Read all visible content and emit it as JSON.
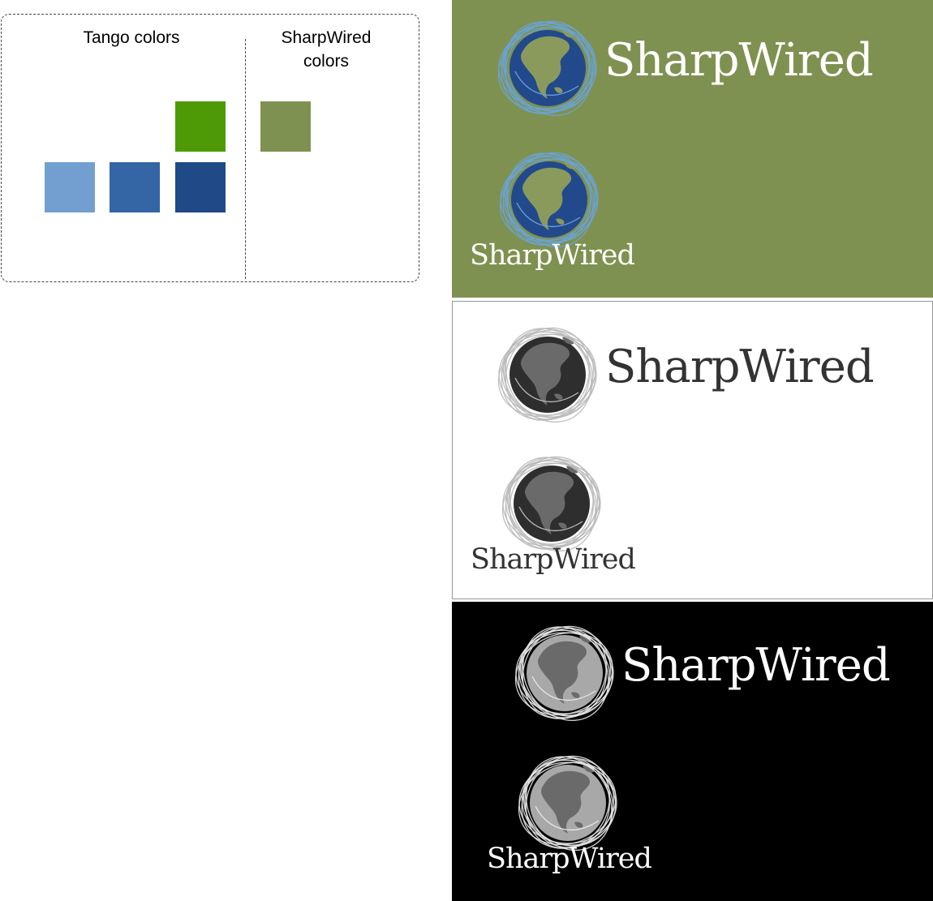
{
  "legend": {
    "tango_heading": "Tango colors",
    "sharpwired_heading_line1": "SharpWired",
    "sharpwired_heading_line2": "colors",
    "tango_swatches": [
      "#4e9a06",
      "#729fcf",
      "#3465a4",
      "#204a87"
    ],
    "sharpwired_swatch": "#7f9150"
  },
  "logo_variants": [
    {
      "name": "color",
      "background": "#7f9150",
      "text_color": "#ffffff",
      "large_label": "SharpWired",
      "small_label": "SharpWired",
      "globe": {
        "ocean": "#22498b",
        "land": "#8a9a5c",
        "rings": "#6aa3d6"
      }
    },
    {
      "name": "grayscale-light",
      "background": "#ffffff",
      "text_color": "#333333",
      "large_label": "SharpWired",
      "small_label": "SharpWired",
      "globe": {
        "ocean": "#2e2e2e",
        "land": "#6a6a6a",
        "rings": "#b9b9b9"
      }
    },
    {
      "name": "grayscale-dark",
      "background": "#000000",
      "text_color": "#ffffff",
      "large_label": "SharpWired",
      "small_label": "SharpWired",
      "globe": {
        "ocean": "#a8a8a8",
        "land": "#6a6a6a",
        "rings": "#e6e6e6"
      }
    }
  ]
}
